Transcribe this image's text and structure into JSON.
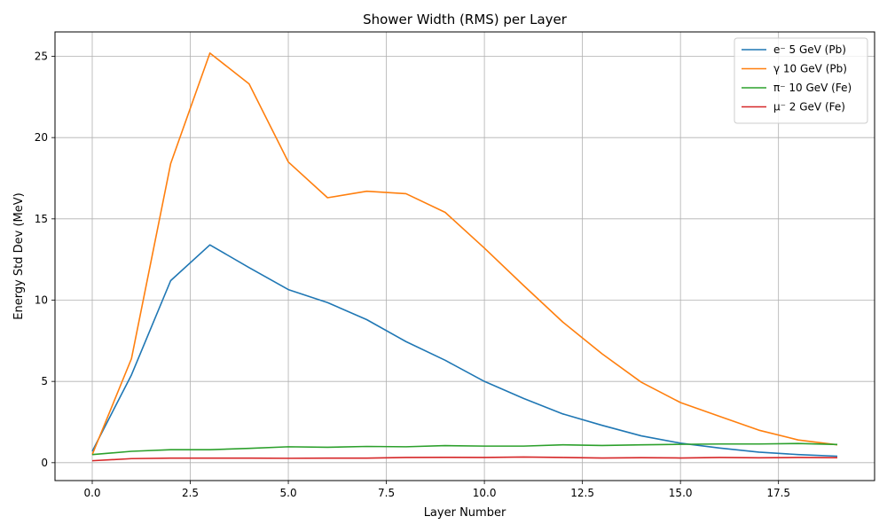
{
  "chart_data": {
    "type": "line",
    "title": "Shower Width (RMS) per Layer",
    "xlabel": "Layer Number",
    "ylabel": "Energy Std Dev (MeV)",
    "xlim": [
      -0.95,
      19.95
    ],
    "ylim": [
      -1.1,
      26.5
    ],
    "xticks": [
      0.0,
      2.5,
      5.0,
      7.5,
      10.0,
      12.5,
      15.0,
      17.5
    ],
    "xtick_labels": [
      "0.0",
      "2.5",
      "5.0",
      "7.5",
      "10.0",
      "12.5",
      "15.0",
      "17.5"
    ],
    "yticks": [
      0,
      5,
      10,
      15,
      20,
      25
    ],
    "ytick_labels": [
      "0",
      "5",
      "10",
      "15",
      "20",
      "25"
    ],
    "grid": true,
    "legend_position": "top-right",
    "x": [
      0,
      1,
      2,
      3,
      4,
      5,
      6,
      7,
      8,
      9,
      10,
      11,
      12,
      13,
      14,
      15,
      16,
      17,
      18,
      19
    ],
    "series": [
      {
        "name": "e⁻ 5 GeV (Pb)",
        "color": "#1f77b4",
        "values": [
          0.7,
          5.4,
          11.2,
          13.4,
          12.0,
          10.65,
          9.85,
          8.8,
          7.45,
          6.3,
          5.0,
          3.95,
          3.0,
          2.3,
          1.65,
          1.2,
          0.9,
          0.65,
          0.5,
          0.4
        ]
      },
      {
        "name": "γ 10 GeV (Pb)",
        "color": "#ff7f0e",
        "values": [
          0.5,
          6.4,
          18.4,
          25.2,
          23.3,
          18.5,
          16.3,
          16.7,
          16.55,
          15.4,
          13.2,
          10.9,
          8.65,
          6.7,
          4.95,
          3.7,
          2.85,
          2.0,
          1.4,
          1.1
        ]
      },
      {
        "name": "π⁻ 10 GeV (Fe)",
        "color": "#2ca02c",
        "values": [
          0.5,
          0.7,
          0.8,
          0.8,
          0.88,
          0.98,
          0.95,
          1.0,
          0.98,
          1.05,
          1.02,
          1.02,
          1.1,
          1.06,
          1.1,
          1.13,
          1.15,
          1.15,
          1.18,
          1.12
        ]
      },
      {
        "name": "μ⁻ 2 GeV (Fe)",
        "color": "#d62728",
        "values": [
          0.12,
          0.25,
          0.28,
          0.28,
          0.28,
          0.27,
          0.28,
          0.28,
          0.32,
          0.33,
          0.32,
          0.35,
          0.32,
          0.29,
          0.31,
          0.29,
          0.32,
          0.3,
          0.32,
          0.31
        ]
      }
    ]
  }
}
